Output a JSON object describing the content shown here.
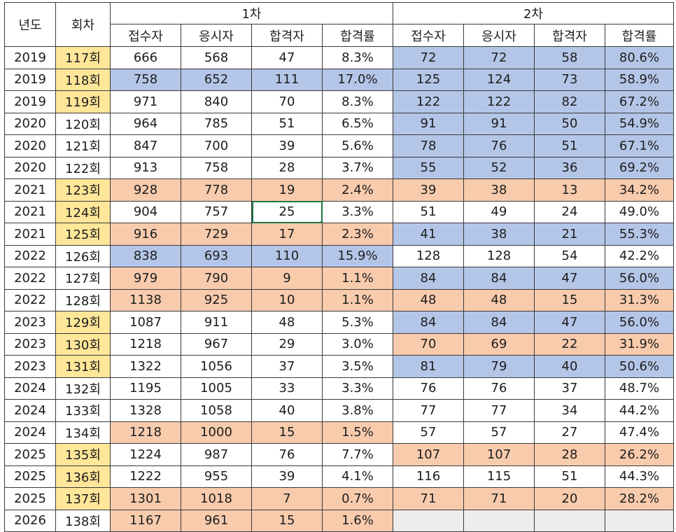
{
  "header": {
    "year_label": "년도",
    "round_label": "회차",
    "first_stage_label": "1차",
    "second_stage_label": "2차",
    "sub_columns": [
      "접수자",
      "응시자",
      "합격자",
      "합격률"
    ]
  },
  "colors": {
    "round_highlight": "#ffe699",
    "high_rate": "#b4c6e7",
    "low_rate": "#f8cbad",
    "empty": "#ededed",
    "selection": "#217346"
  },
  "selected_cell": {
    "row": 7,
    "column": "1차 합격자",
    "value": "25"
  },
  "rows": [
    {
      "year": "2019",
      "round": "117회",
      "round_hl": true,
      "s1": [
        "666",
        "568",
        "47",
        "8.3%"
      ],
      "s1_bg": "white",
      "s2": [
        "72",
        "72",
        "58",
        "80.6%"
      ],
      "s2_bg": "blue"
    },
    {
      "year": "2019",
      "round": "118회",
      "round_hl": true,
      "s1": [
        "758",
        "652",
        "111",
        "17.0%"
      ],
      "s1_bg": "blue",
      "s2": [
        "125",
        "124",
        "73",
        "58.9%"
      ],
      "s2_bg": "blue"
    },
    {
      "year": "2019",
      "round": "119회",
      "round_hl": true,
      "s1": [
        "971",
        "840",
        "70",
        "8.3%"
      ],
      "s1_bg": "white",
      "s2": [
        "122",
        "122",
        "82",
        "67.2%"
      ],
      "s2_bg": "blue"
    },
    {
      "year": "2020",
      "round": "120회",
      "round_hl": false,
      "s1": [
        "964",
        "785",
        "51",
        "6.5%"
      ],
      "s1_bg": "white",
      "s2": [
        "91",
        "91",
        "50",
        "54.9%"
      ],
      "s2_bg": "blue"
    },
    {
      "year": "2020",
      "round": "121회",
      "round_hl": false,
      "s1": [
        "847",
        "700",
        "39",
        "5.6%"
      ],
      "s1_bg": "white",
      "s2": [
        "78",
        "76",
        "51",
        "67.1%"
      ],
      "s2_bg": "blue"
    },
    {
      "year": "2020",
      "round": "122회",
      "round_hl": false,
      "s1": [
        "913",
        "758",
        "28",
        "3.7%"
      ],
      "s1_bg": "white",
      "s2": [
        "55",
        "52",
        "36",
        "69.2%"
      ],
      "s2_bg": "blue"
    },
    {
      "year": "2021",
      "round": "123회",
      "round_hl": true,
      "s1": [
        "928",
        "778",
        "19",
        "2.4%"
      ],
      "s1_bg": "orange",
      "s2": [
        "39",
        "38",
        "13",
        "34.2%"
      ],
      "s2_bg": "orange"
    },
    {
      "year": "2021",
      "round": "124회",
      "round_hl": true,
      "s1": [
        "904",
        "757",
        "25",
        "3.3%"
      ],
      "s1_bg": "white",
      "s2": [
        "51",
        "49",
        "24",
        "49.0%"
      ],
      "s2_bg": "white"
    },
    {
      "year": "2021",
      "round": "125회",
      "round_hl": true,
      "s1": [
        "916",
        "729",
        "17",
        "2.3%"
      ],
      "s1_bg": "orange",
      "s2": [
        "41",
        "38",
        "21",
        "55.3%"
      ],
      "s2_bg": "blue"
    },
    {
      "year": "2022",
      "round": "126회",
      "round_hl": false,
      "s1": [
        "838",
        "693",
        "110",
        "15.9%"
      ],
      "s1_bg": "blue",
      "s2": [
        "128",
        "128",
        "54",
        "42.2%"
      ],
      "s2_bg": "white"
    },
    {
      "year": "2022",
      "round": "127회",
      "round_hl": false,
      "s1": [
        "979",
        "790",
        "9",
        "1.1%"
      ],
      "s1_bg": "orange",
      "s2": [
        "84",
        "84",
        "47",
        "56.0%"
      ],
      "s2_bg": "blue"
    },
    {
      "year": "2022",
      "round": "128회",
      "round_hl": false,
      "s1": [
        "1138",
        "925",
        "10",
        "1.1%"
      ],
      "s1_bg": "orange",
      "s2": [
        "48",
        "48",
        "15",
        "31.3%"
      ],
      "s2_bg": "orange"
    },
    {
      "year": "2023",
      "round": "129회",
      "round_hl": true,
      "s1": [
        "1087",
        "911",
        "48",
        "5.3%"
      ],
      "s1_bg": "white",
      "s2": [
        "84",
        "84",
        "47",
        "56.0%"
      ],
      "s2_bg": "blue"
    },
    {
      "year": "2023",
      "round": "130회",
      "round_hl": true,
      "s1": [
        "1218",
        "967",
        "29",
        "3.0%"
      ],
      "s1_bg": "white",
      "s2": [
        "70",
        "69",
        "22",
        "31.9%"
      ],
      "s2_bg": "orange"
    },
    {
      "year": "2023",
      "round": "131회",
      "round_hl": true,
      "s1": [
        "1322",
        "1056",
        "37",
        "3.5%"
      ],
      "s1_bg": "white",
      "s2": [
        "81",
        "79",
        "40",
        "50.6%"
      ],
      "s2_bg": "blue"
    },
    {
      "year": "2024",
      "round": "132회",
      "round_hl": false,
      "s1": [
        "1195",
        "1005",
        "33",
        "3.3%"
      ],
      "s1_bg": "white",
      "s2": [
        "76",
        "76",
        "37",
        "48.7%"
      ],
      "s2_bg": "white"
    },
    {
      "year": "2024",
      "round": "133회",
      "round_hl": false,
      "s1": [
        "1328",
        "1058",
        "40",
        "3.8%"
      ],
      "s1_bg": "white",
      "s2": [
        "77",
        "77",
        "34",
        "44.2%"
      ],
      "s2_bg": "white"
    },
    {
      "year": "2024",
      "round": "134회",
      "round_hl": false,
      "s1": [
        "1218",
        "1000",
        "15",
        "1.5%"
      ],
      "s1_bg": "orange",
      "s2": [
        "57",
        "57",
        "27",
        "47.4%"
      ],
      "s2_bg": "white"
    },
    {
      "year": "2025",
      "round": "135회",
      "round_hl": true,
      "s1": [
        "1224",
        "987",
        "76",
        "7.7%"
      ],
      "s1_bg": "white",
      "s2": [
        "107",
        "107",
        "28",
        "26.2%"
      ],
      "s2_bg": "orange"
    },
    {
      "year": "2025",
      "round": "136회",
      "round_hl": true,
      "s1": [
        "1222",
        "955",
        "39",
        "4.1%"
      ],
      "s1_bg": "white",
      "s2": [
        "116",
        "115",
        "51",
        "44.3%"
      ],
      "s2_bg": "white"
    },
    {
      "year": "2025",
      "round": "137회",
      "round_hl": true,
      "s1": [
        "1301",
        "1018",
        "7",
        "0.7%"
      ],
      "s1_bg": "orange",
      "s2": [
        "71",
        "71",
        "20",
        "28.2%"
      ],
      "s2_bg": "orange"
    },
    {
      "year": "2026",
      "round": "138회",
      "round_hl": false,
      "s1": [
        "1167",
        "961",
        "15",
        "1.6%"
      ],
      "s1_bg": "orange",
      "s2": [
        "",
        "",
        "",
        ""
      ],
      "s2_bg": "gray"
    }
  ]
}
